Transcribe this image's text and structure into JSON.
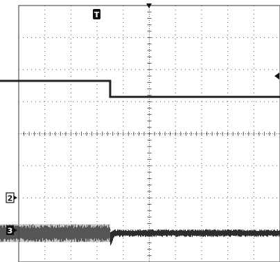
{
  "screen": {
    "background": "#ffffff",
    "grid_color": "#555555",
    "trace_color": "#222222",
    "noise_color": "#3a3a3a",
    "noise_color_light": "#9a9a9a"
  },
  "grid": {
    "major_divisions_x": 10,
    "major_divisions_y": 8,
    "minor_ticks_per_division": 5
  },
  "markers": {
    "trigger_label": "T",
    "trigger_icon": "trigger-marker-icon",
    "trigger_level_icon": "trigger-level-arrow-icon",
    "channel2_label": "2",
    "channel3_label": "3"
  },
  "traces": {
    "upper_step": {
      "high_level_div": 2.35,
      "low_level_div": 2.85,
      "step_time_div": 3.5
    },
    "lower_noise": {
      "level_div": 7.1,
      "before_amplitude_div": 0.28,
      "after_amplitude_div": 0.12,
      "step_time_div": 3.5
    }
  }
}
